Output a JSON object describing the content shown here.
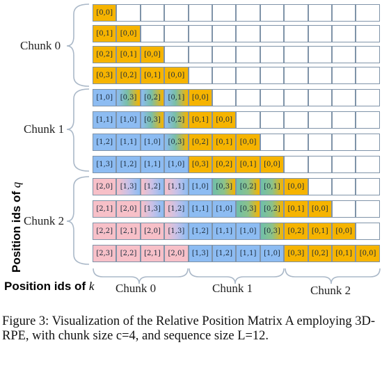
{
  "axis": {
    "q_label": "Position ids of",
    "q_var": "q",
    "k_label": "Position ids of",
    "k_var": "k"
  },
  "row_chunks": [
    "Chunk 0",
    "Chunk 1",
    "Chunk 2"
  ],
  "col_chunks": [
    "Chunk 0",
    "Chunk 1",
    "Chunk 2"
  ],
  "matrix": {
    "rows": [
      [
        "[0,0]"
      ],
      [
        "[0,1]",
        "[0,0]"
      ],
      [
        "[0,2]",
        "[0,1]",
        "[0,0]"
      ],
      [
        "[0,3]",
        "[0,2]",
        "[0,1]",
        "[0,0]"
      ],
      [
        "[1,0]",
        "[0,3]",
        "[0,2]",
        "[0,1]",
        "[0,0]"
      ],
      [
        "[1,1]",
        "[1,0]",
        "[0,3]",
        "[0,2]",
        "[0,1]",
        "[0,0]"
      ],
      [
        "[1,2]",
        "[1,1]",
        "[1,0]",
        "[0,3]",
        "[0,2]",
        "[0,1]",
        "[0,0]"
      ],
      [
        "[1,3]",
        "[1,2]",
        "[1,1]",
        "[1,0]",
        "[0,3]",
        "[0,2]",
        "[0,1]",
        "[0,0]"
      ],
      [
        "[2,0]",
        "[1,3]",
        "[1,2]",
        "[1,1]",
        "[1,0]",
        "[0,3]",
        "[0,2]",
        "[0,1]",
        "[0,0]"
      ],
      [
        "[2,1]",
        "[2,0]",
        "[1,3]",
        "[1,2]",
        "[1,1]",
        "[1,0]",
        "[0,3]",
        "[0,2]",
        "[0,1]",
        "[0,0]"
      ],
      [
        "[2,2]",
        "[2,1]",
        "[2,0]",
        "[1,3]",
        "[1,2]",
        "[1,1]",
        "[1,0]",
        "[0,3]",
        "[0,2]",
        "[0,1]",
        "[0,0]"
      ],
      [
        "[2,3]",
        "[2,2]",
        "[2,1]",
        "[2,0]",
        "[1,3]",
        "[1,2]",
        "[1,1]",
        "[1,0]",
        "[0,3]",
        "[0,2]",
        "[0,1]",
        "[0,0]"
      ]
    ],
    "columns": 12
  },
  "colors": {
    "orange": "#f6b400",
    "blue": "#8dbcf2",
    "pink": "#f7c0c8",
    "grid": "#7f93a8"
  },
  "caption": "Figure 3: Visualization of the Relative Position Matrix A employing 3D-RPE, with chunk size c=4, and sequence size L=12."
}
